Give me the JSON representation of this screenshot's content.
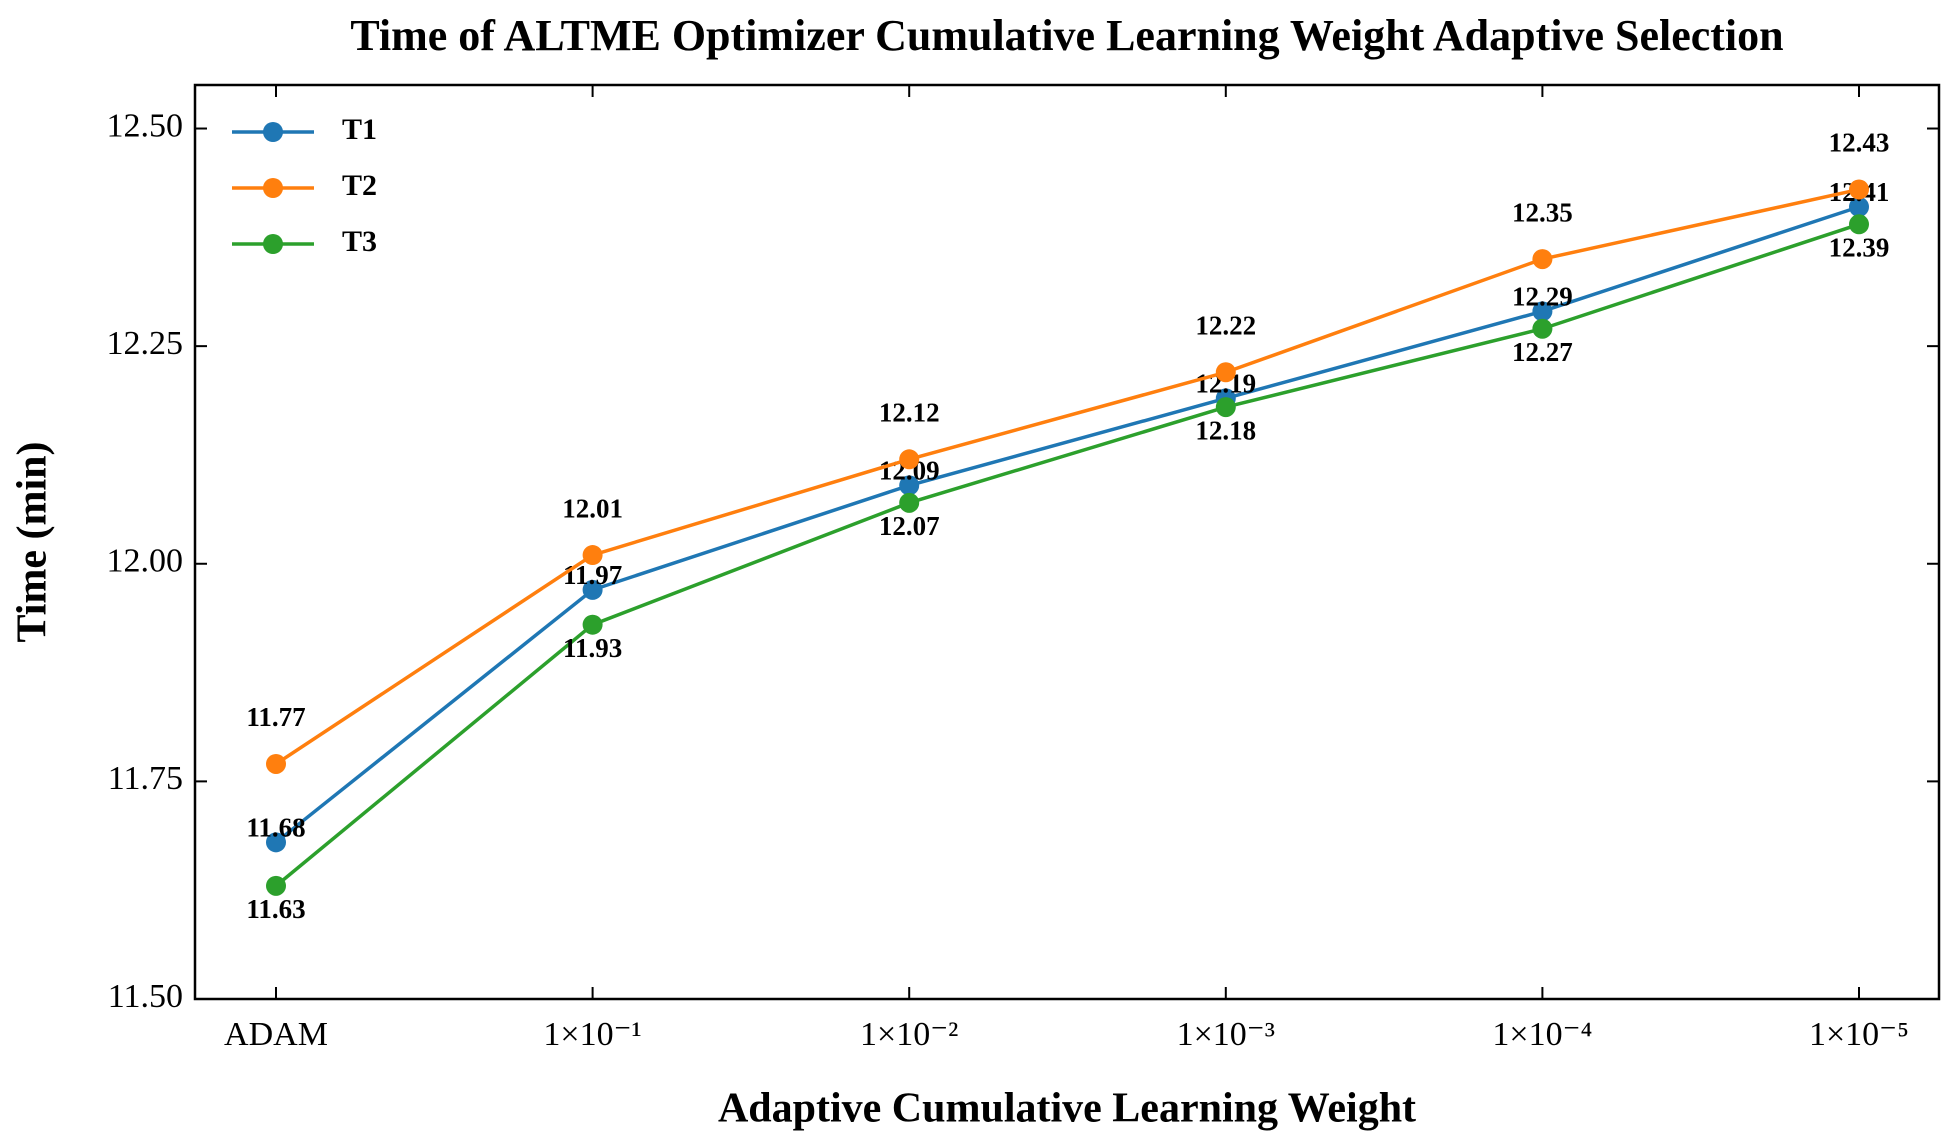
{
  "chart_data": {
    "type": "line",
    "title": "Time of ALTME Optimizer Cumulative Learning Weight Adaptive Selection",
    "x_label": "Adaptive Cumulative Learning Weight",
    "y_label": "Time (min)",
    "categories": [
      "ADAM",
      "1×10⁻¹",
      "1×10⁻²",
      "1×10⁻³",
      "1×10⁻⁴",
      "1×10⁻⁵"
    ],
    "series": [
      {
        "name": "T1",
        "color": "#1f77b4",
        "values": [
          11.68,
          11.97,
          12.09,
          12.19,
          12.29,
          12.41
        ]
      },
      {
        "name": "T2",
        "color": "#ff7f0e",
        "values": [
          11.77,
          12.01,
          12.12,
          12.22,
          12.35,
          12.43
        ]
      },
      {
        "name": "T3",
        "color": "#2ca02c",
        "values": [
          11.63,
          11.93,
          12.07,
          12.18,
          12.27,
          12.39
        ]
      }
    ],
    "ylim": [
      11.5,
      12.55
    ],
    "yticks": [
      {
        "value": 11.5,
        "label": "11.50"
      },
      {
        "value": 11.75,
        "label": "11.75"
      },
      {
        "value": 12,
        "label": "12.00"
      },
      {
        "value": 12.25,
        "label": "12.25"
      },
      {
        "value": 12.5,
        "label": "12.50"
      }
    ],
    "legend": "upper left"
  }
}
